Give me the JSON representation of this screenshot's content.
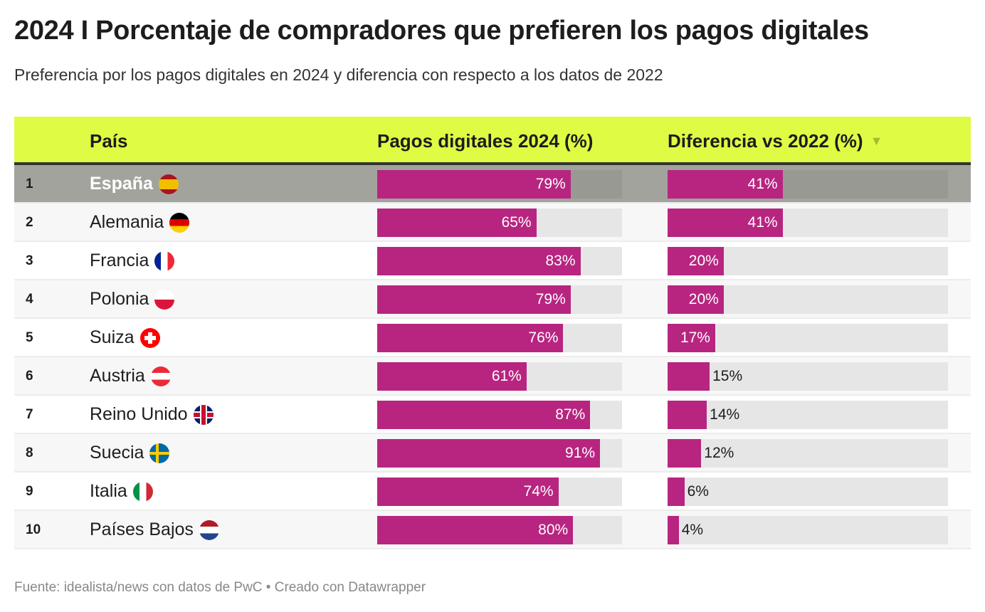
{
  "title": "2024 I Porcentaje de compradores que prefieren los pagos digitales",
  "subtitle": "Preferencia por los pagos digitales en 2024 y diferencia con respecto a los datos de 2022",
  "footer": "Fuente: idealista/news con datos de PwC • Creado con Datawrapper",
  "colors": {
    "header": "#e0fb44",
    "bar": "#b72580",
    "highlight_row": "#a3a39e",
    "track": "#e6e6e6"
  },
  "chart_data": {
    "type": "table",
    "columns": [
      "",
      "País",
      "Pagos digitales 2024 (%)",
      "Diferencia vs 2022 (%)"
    ],
    "sort": {
      "column": "Diferencia vs 2022 (%)",
      "direction": "descending"
    },
    "bar_range": [
      0,
      100
    ],
    "highlighted_row": "España",
    "rows": [
      {
        "rank": "1",
        "country": "España",
        "flag": "es",
        "pagos": 79,
        "pagos_label": "79%",
        "diff": 41,
        "diff_label": "41%"
      },
      {
        "rank": "2",
        "country": "Alemania",
        "flag": "de",
        "pagos": 65,
        "pagos_label": "65%",
        "diff": 41,
        "diff_label": "41%"
      },
      {
        "rank": "3",
        "country": "Francia",
        "flag": "fr",
        "pagos": 83,
        "pagos_label": "83%",
        "diff": 20,
        "diff_label": "20%"
      },
      {
        "rank": "4",
        "country": "Polonia",
        "flag": "pl",
        "pagos": 79,
        "pagos_label": "79%",
        "diff": 20,
        "diff_label": "20%"
      },
      {
        "rank": "5",
        "country": "Suiza",
        "flag": "ch",
        "pagos": 76,
        "pagos_label": "76%",
        "diff": 17,
        "diff_label": "17%"
      },
      {
        "rank": "6",
        "country": "Austria",
        "flag": "at",
        "pagos": 61,
        "pagos_label": "61%",
        "diff": 15,
        "diff_label": "15%"
      },
      {
        "rank": "7",
        "country": "Reino Unido",
        "flag": "gb",
        "pagos": 87,
        "pagos_label": "87%",
        "diff": 14,
        "diff_label": "14%"
      },
      {
        "rank": "8",
        "country": "Suecia",
        "flag": "se",
        "pagos": 91,
        "pagos_label": "91%",
        "diff": 12,
        "diff_label": "12%"
      },
      {
        "rank": "9",
        "country": "Italia",
        "flag": "it",
        "pagos": 74,
        "pagos_label": "74%",
        "diff": 6,
        "diff_label": "6%"
      },
      {
        "rank": "10",
        "country": "Países Bajos",
        "flag": "nl",
        "pagos": 80,
        "pagos_label": "80%",
        "diff": 4,
        "diff_label": "4%"
      }
    ]
  }
}
